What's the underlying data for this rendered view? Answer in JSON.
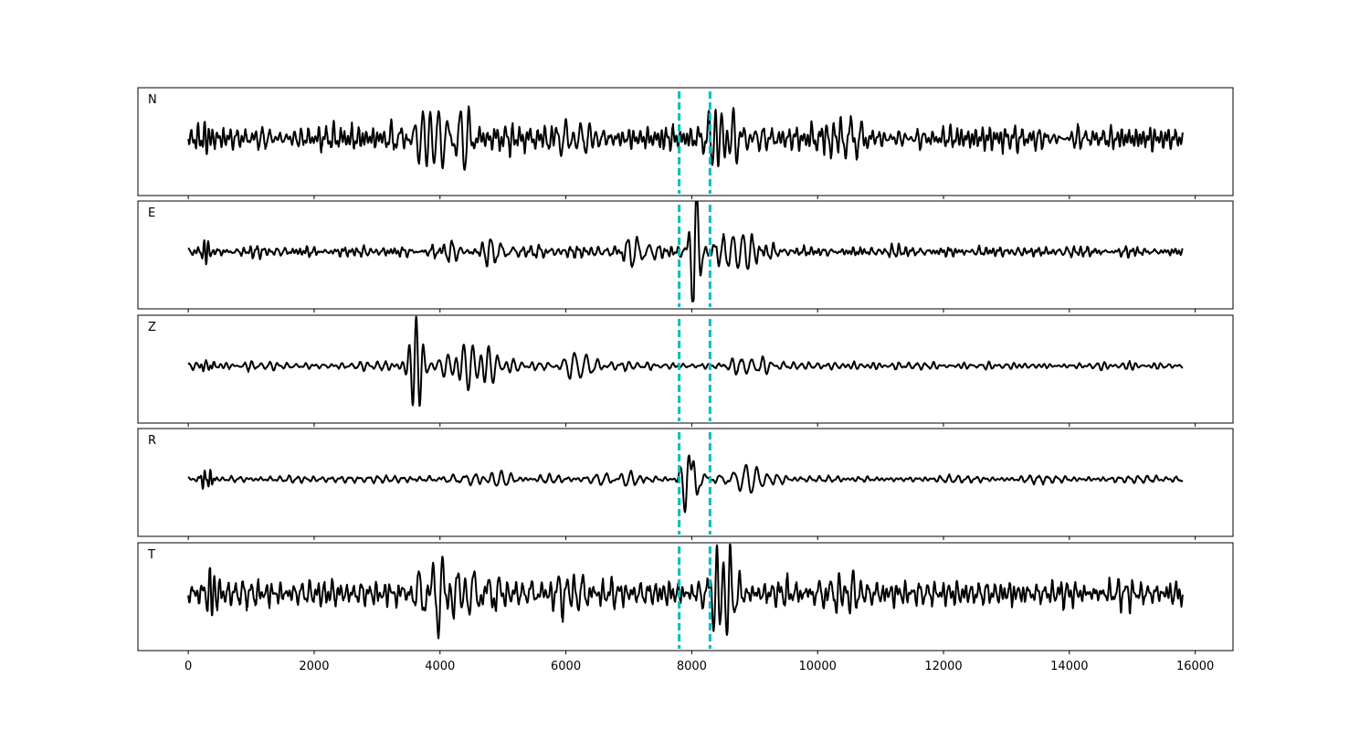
{
  "chart_data": {
    "type": "line",
    "title": "",
    "xlabel": "",
    "ylabel": "",
    "xlim": [
      -800,
      16600
    ],
    "x_ticks": [
      0,
      2000,
      4000,
      6000,
      8000,
      10000,
      12000,
      14000,
      16000
    ],
    "x_tick_labels": [
      "0",
      "2000",
      "4000",
      "6000",
      "8000",
      "10000",
      "12000",
      "14000",
      "16000"
    ],
    "x_range": [
      0,
      15800
    ],
    "grid": false,
    "pick_lines": [
      7800,
      8290
    ],
    "pick_color": "#00bfbf",
    "trace_color": "#000000",
    "series": [
      {
        "name": "N",
        "noise_amp": 0.18,
        "events": [
          {
            "center": 250,
            "width": 200,
            "amp": 0.35,
            "period": 70
          },
          {
            "center": 4100,
            "width": 1300,
            "amp": 0.55,
            "period": 160
          },
          {
            "center": 6000,
            "width": 900,
            "amp": 0.4,
            "period": 150
          },
          {
            "center": 8500,
            "width": 600,
            "amp": 0.75,
            "period": 130
          },
          {
            "center": 10300,
            "width": 900,
            "amp": 0.35,
            "period": 150
          }
        ]
      },
      {
        "name": "E",
        "noise_amp": 0.08,
        "events": [
          {
            "center": 300,
            "width": 200,
            "amp": 0.2,
            "period": 70
          },
          {
            "center": 4800,
            "width": 1400,
            "amp": 0.18,
            "period": 150
          },
          {
            "center": 7100,
            "width": 600,
            "amp": 0.2,
            "period": 140
          },
          {
            "center": 8050,
            "width": 220,
            "amp": 0.95,
            "period": 140
          },
          {
            "center": 8800,
            "width": 700,
            "amp": 0.4,
            "period": 150
          }
        ]
      },
      {
        "name": "Z",
        "noise_amp": 0.06,
        "events": [
          {
            "center": 300,
            "width": 200,
            "amp": 0.12,
            "period": 70
          },
          {
            "center": 3620,
            "width": 220,
            "amp": 1.0,
            "period": 120
          },
          {
            "center": 4500,
            "width": 900,
            "amp": 0.4,
            "period": 150
          },
          {
            "center": 6200,
            "width": 700,
            "amp": 0.22,
            "period": 150
          },
          {
            "center": 8900,
            "width": 900,
            "amp": 0.22,
            "period": 150
          }
        ]
      },
      {
        "name": "R",
        "noise_amp": 0.06,
        "events": [
          {
            "center": 300,
            "width": 200,
            "amp": 0.2,
            "period": 70
          },
          {
            "center": 4600,
            "width": 1200,
            "amp": 0.16,
            "period": 150
          },
          {
            "center": 6700,
            "width": 800,
            "amp": 0.16,
            "period": 150
          },
          {
            "center": 8000,
            "width": 230,
            "amp": 1.0,
            "period": 140
          },
          {
            "center": 8900,
            "width": 700,
            "amp": 0.35,
            "period": 150
          }
        ]
      },
      {
        "name": "T",
        "noise_amp": 0.2,
        "events": [
          {
            "center": 300,
            "width": 200,
            "amp": 0.55,
            "period": 70
          },
          {
            "center": 4200,
            "width": 1200,
            "amp": 0.6,
            "period": 160
          },
          {
            "center": 6000,
            "width": 900,
            "amp": 0.45,
            "period": 150
          },
          {
            "center": 8500,
            "width": 650,
            "amp": 0.75,
            "period": 130
          },
          {
            "center": 10300,
            "width": 900,
            "amp": 0.35,
            "period": 150
          }
        ]
      }
    ]
  }
}
